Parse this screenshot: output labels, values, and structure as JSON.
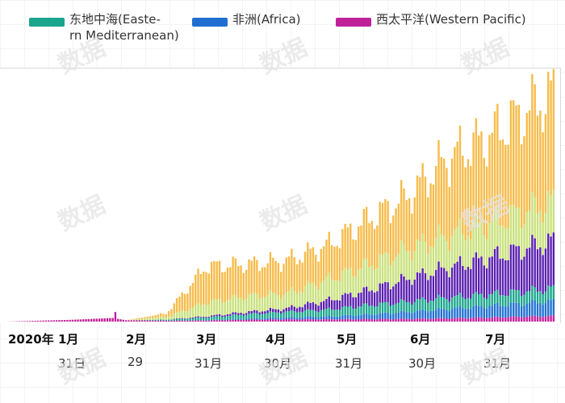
{
  "watermark": "数据",
  "legend": [
    {
      "label_line1": "东地中海(Easte-",
      "label_line2": "rn Mediterranean)",
      "color": "#1aa68c"
    },
    {
      "label_line1": "非洲(Africa)",
      "label_line2": "",
      "color": "#1f6fd1"
    },
    {
      "label_line1": "西太平洋(Western Pacific)",
      "label_line2": "",
      "color": "#c0219b"
    }
  ],
  "chart_data": {
    "type": "bar",
    "stacked": true,
    "grid": false,
    "x_ticks": [
      {
        "month": "2020年 1月",
        "day": "31日"
      },
      {
        "month": "2月",
        "day": "29"
      },
      {
        "month": "3月",
        "day": "31月"
      },
      {
        "month": "4月",
        "day": "30月"
      },
      {
        "month": "5月",
        "day": "31月"
      },
      {
        "month": "6月",
        "day": "30月"
      },
      {
        "month": "7月",
        "day": "31月"
      }
    ],
    "series": [
      {
        "name": "西太平洋(Western Pacific)",
        "color": "#c0219b"
      },
      {
        "name": "非洲(Africa)",
        "color": "#1f6fd1"
      },
      {
        "name": "东地中海(Eastern Mediterranean)",
        "color": "#1aa68c"
      },
      {
        "name": "",
        "color": "#5a1fb0"
      },
      {
        "name": "",
        "color": "#c8e07a"
      },
      {
        "name": "",
        "color": "#f6bb49"
      }
    ],
    "anchors": [
      [
        0,
        [
          0,
          0,
          0,
          0,
          0,
          0
        ]
      ],
      [
        25,
        [
          800,
          0,
          0,
          0,
          0,
          0
        ]
      ],
      [
        40,
        [
          1600,
          0,
          0,
          0,
          0,
          0
        ]
      ],
      [
        45,
        [
          600,
          0,
          0,
          0,
          0,
          0
        ]
      ],
      [
        60,
        [
          400,
          30,
          400,
          30,
          1200,
          1500
        ]
      ],
      [
        75,
        [
          500,
          100,
          1200,
          500,
          6000,
          16000
        ]
      ],
      [
        90,
        [
          800,
          400,
          2000,
          1000,
          7000,
          14000
        ]
      ],
      [
        105,
        [
          1000,
          800,
          2500,
          1500,
          6500,
          14500
        ]
      ],
      [
        120,
        [
          1000,
          1200,
          3000,
          4000,
          9000,
          15000
        ]
      ],
      [
        135,
        [
          1100,
          2000,
          4000,
          6500,
          11000,
          20000
        ]
      ],
      [
        150,
        [
          1200,
          3000,
          4500,
          10000,
          13000,
          23000
        ]
      ],
      [
        165,
        [
          1500,
          4000,
          5000,
          13000,
          14000,
          34000
        ]
      ],
      [
        180,
        [
          1800,
          5000,
          5000,
          16000,
          15000,
          38000
        ]
      ],
      [
        205,
        [
          2500,
          6500,
          5500,
          21000,
          17000,
          48000
        ]
      ]
    ],
    "count": 206,
    "ymax": 105000
  }
}
